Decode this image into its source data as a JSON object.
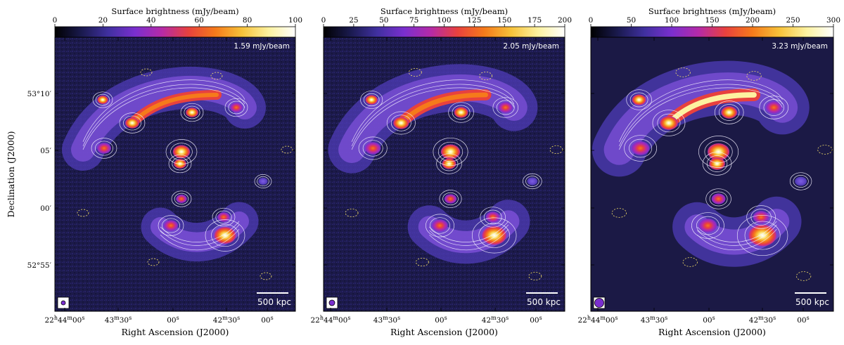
{
  "figure": {
    "colorbar_label": "Surface brightness (mJy/beam)",
    "xlabel": "Right Ascension (J2000)",
    "ylabel": "Declination (J2000)",
    "colormap": [
      "#000000",
      "#1a1a4e",
      "#4030a0",
      "#7a2fcf",
      "#b52aa8",
      "#e8413e",
      "#f57a1b",
      "#f7c23a",
      "#fdf2a0",
      "#ffffff"
    ]
  },
  "chart_data": [
    {
      "type": "heatmap",
      "panel": "left",
      "colorbar": {
        "min": 0,
        "max": 100,
        "ticks": [
          "0",
          "20",
          "40",
          "60",
          "80",
          "100"
        ]
      },
      "noise_label": "1.59 mJy/beam",
      "scalebar_label": "500 kpc",
      "beam_size": "small",
      "x_ticks": [
        "22h44m00s",
        "43m30s",
        "00s",
        "42m30s",
        "00s"
      ],
      "y_ticks": [
        "53°10′",
        "05′",
        "00′",
        "52°55′"
      ]
    },
    {
      "type": "heatmap",
      "panel": "middle",
      "colorbar": {
        "min": 0,
        "max": 200,
        "ticks": [
          "0",
          "25",
          "50",
          "75",
          "100",
          "125",
          "150",
          "175",
          "200"
        ]
      },
      "noise_label": "2.05 mJy/beam",
      "scalebar_label": "500 kpc",
      "beam_size": "medium",
      "x_ticks": [
        "22h44m00s",
        "43m30s",
        "00s",
        "42m30s",
        "00s"
      ]
    },
    {
      "type": "heatmap",
      "panel": "right",
      "colorbar": {
        "min": 0,
        "max": 300,
        "ticks": [
          "0",
          "50",
          "100",
          "150",
          "200",
          "250",
          "300"
        ]
      },
      "noise_label": "3.23 mJy/beam",
      "scalebar_label": "500 kpc",
      "beam_size": "large",
      "x_ticks": [
        "22h44m00s",
        "43m30s",
        "00s",
        "42m30s",
        "00s"
      ]
    }
  ]
}
